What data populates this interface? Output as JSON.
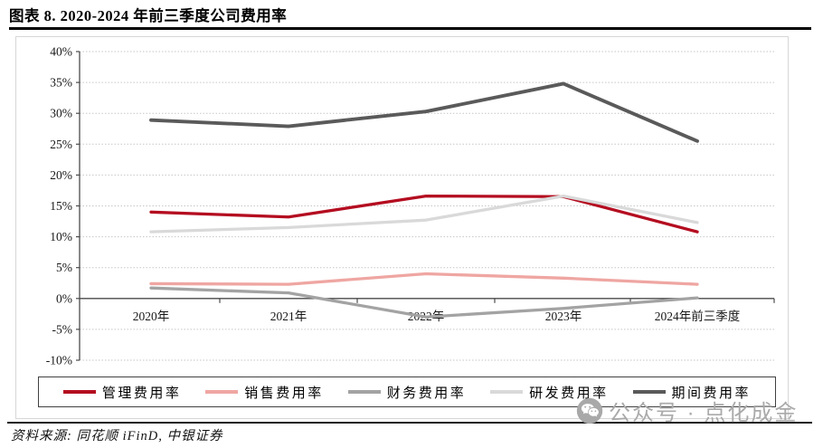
{
  "header": {
    "title": "图表 8. 2020-2024 年前三季度公司费用率"
  },
  "chart_data": {
    "type": "line",
    "title": "2020-2024 年前三季度公司费用率",
    "categories": [
      "2020年",
      "2021年",
      "2022年",
      "2023年",
      "2024年前三季度"
    ],
    "series": [
      {
        "id": "management",
        "name": "管理费用率",
        "color": "#b40d20",
        "values": [
          14.0,
          13.2,
          16.6,
          16.5,
          10.8
        ]
      },
      {
        "id": "sales",
        "name": "销售费用率",
        "color": "#efa6a2",
        "values": [
          2.4,
          2.3,
          4.0,
          3.3,
          2.3
        ]
      },
      {
        "id": "finance",
        "name": "财务费用率",
        "color": "#a3a3a3",
        "values": [
          1.7,
          0.9,
          -3.0,
          -1.6,
          0.1
        ]
      },
      {
        "id": "rnd",
        "name": "研发费用率",
        "color": "#d9d9d9",
        "values": [
          10.8,
          11.5,
          12.7,
          16.6,
          12.3
        ]
      },
      {
        "id": "period",
        "name": "期间费用率",
        "color": "#5a5a5a",
        "values": [
          28.9,
          27.9,
          30.3,
          34.8,
          25.5
        ]
      }
    ],
    "ylim": [
      -10,
      40
    ],
    "ytick_values": [
      40,
      35,
      30,
      25,
      20,
      15,
      10,
      5,
      0,
      -5,
      -10
    ],
    "ytick_labels": [
      "40%",
      "35%",
      "30%",
      "25%",
      "20%",
      "15%",
      "10%",
      "5%",
      "0%",
      "-5%",
      "-10%"
    ],
    "xlabel": "",
    "ylabel": "",
    "grid": "horizontal-dotted",
    "legend_position": "bottom-box"
  },
  "watermark": {
    "text": "公众号 · 点化成金",
    "icon": "wechat-icon",
    "color": "#aaaaaa"
  },
  "footer": {
    "source": "资料来源: 同花顺 iFinD, 中银证券"
  }
}
